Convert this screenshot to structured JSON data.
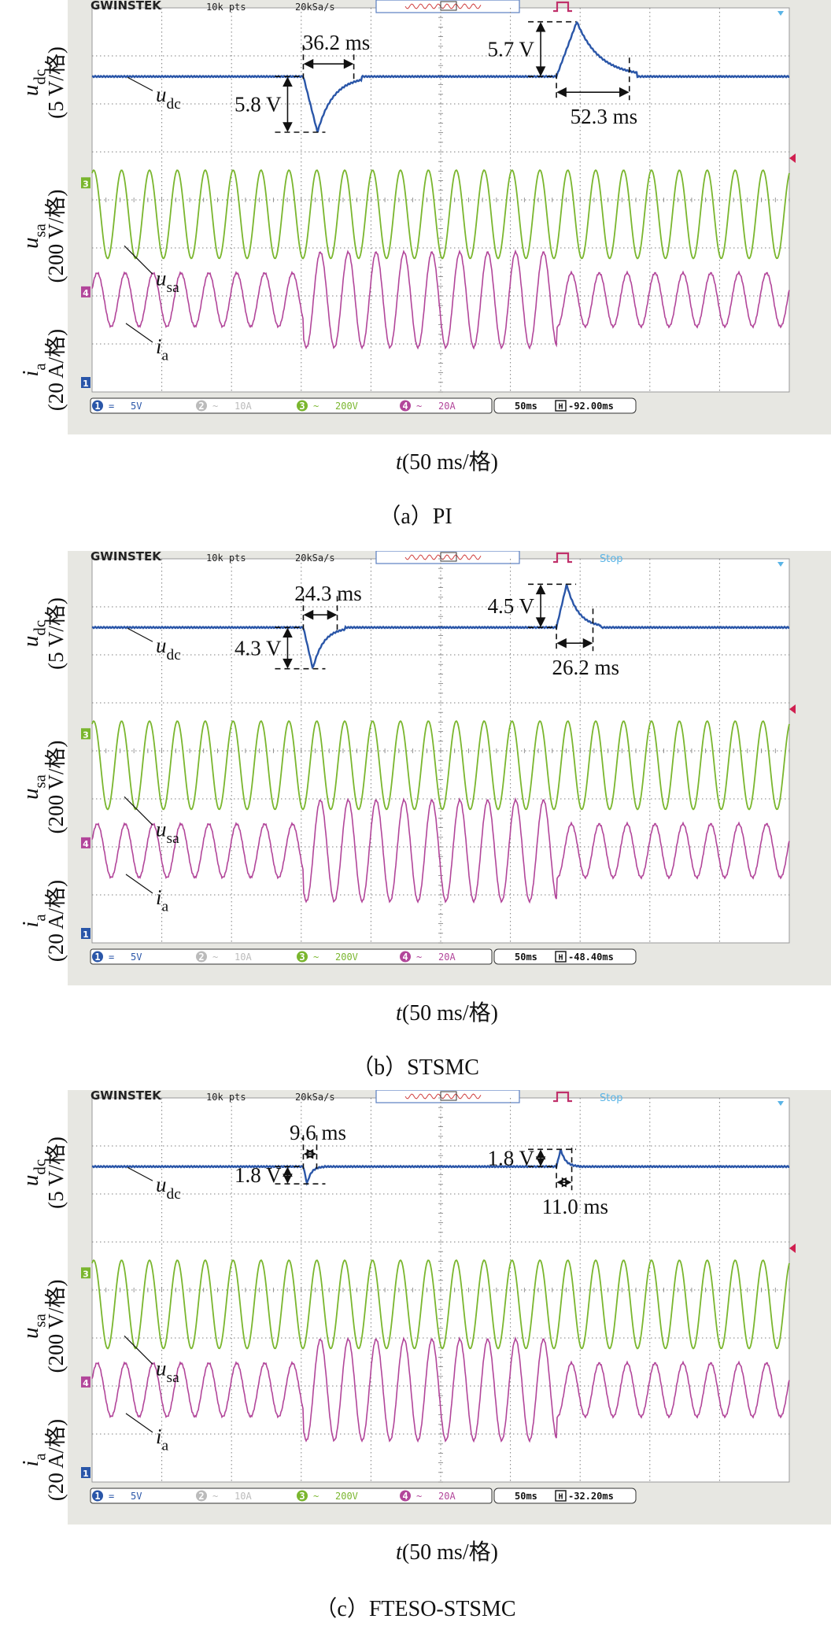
{
  "scope": {
    "brand": "GWINSTEK",
    "points": "10k pts",
    "sample_rate": "20kSa/s",
    "ch1": {
      "num": "1",
      "coupling": "=",
      "scale": "5V"
    },
    "ch2": {
      "num": "2",
      "coupling": "~",
      "scale": "10A"
    },
    "ch3": {
      "num": "3",
      "coupling": "~",
      "scale": "200V"
    },
    "ch4": {
      "num": "4",
      "coupling": "~",
      "scale": "20A"
    },
    "timebase": "50ms",
    "colors": {
      "ch1": "#2a56a8",
      "ch3": "#7ab62e",
      "ch4": "#b2469a",
      "screen": "#ffffff",
      "bezel": "#e7e7e2",
      "grid": "#7f7f7f"
    }
  },
  "axis": {
    "udc_label": "u_dc (5 V/格)",
    "usa_label": "u_sa (200 V/格)",
    "ia_label": "i_a (20 A/格)",
    "x_label": "t(50 ms/格)"
  },
  "trace_labels": {
    "udc": "u_dc",
    "usa": "u_sa",
    "ia": "i_a"
  },
  "chart_data": [
    {
      "type": "line",
      "caption": "（a）PI",
      "status": "",
      "offset": "-92.00ms",
      "annotations": {
        "dip_time": "36.2 ms",
        "dip_voltage": "5.8 V",
        "rise_voltage": "5.7 V",
        "rise_time": "52.3 ms"
      },
      "udc": {
        "dip_V": 5.8,
        "dip_ms": 36.2,
        "overshoot_V": 5.7,
        "overshoot_ms": 52.3
      },
      "ia": {
        "amp_before_div": 0.9,
        "amp_during_div": 1.6,
        "amp_after_div": 0.9
      }
    },
    {
      "type": "line",
      "caption": "（b）STSMC",
      "status": "Stop",
      "offset": "-48.40ms",
      "annotations": {
        "dip_time": "24.3 ms",
        "dip_voltage": "4.3 V",
        "rise_voltage": "4.5 V",
        "rise_time": "26.2 ms"
      },
      "udc": {
        "dip_V": 4.3,
        "dip_ms": 24.3,
        "overshoot_V": 4.5,
        "overshoot_ms": 26.2
      },
      "ia": {
        "amp_before_div": 0.9,
        "amp_during_div": 1.7,
        "amp_after_div": 0.9
      }
    },
    {
      "type": "line",
      "caption": "（c）FTESO-STSMC",
      "status": "Stop",
      "offset": "-32.20ms",
      "annotations": {
        "dip_time": "9.6 ms",
        "dip_voltage": "1.8 V",
        "rise_voltage": "1.8 V",
        "rise_time": "11.0 ms"
      },
      "udc": {
        "dip_V": 1.8,
        "dip_ms": 9.6,
        "overshoot_V": 1.8,
        "overshoot_ms": 11.0
      },
      "ia": {
        "amp_before_div": 0.9,
        "amp_during_div": 1.7,
        "amp_after_div": 0.9
      }
    }
  ]
}
